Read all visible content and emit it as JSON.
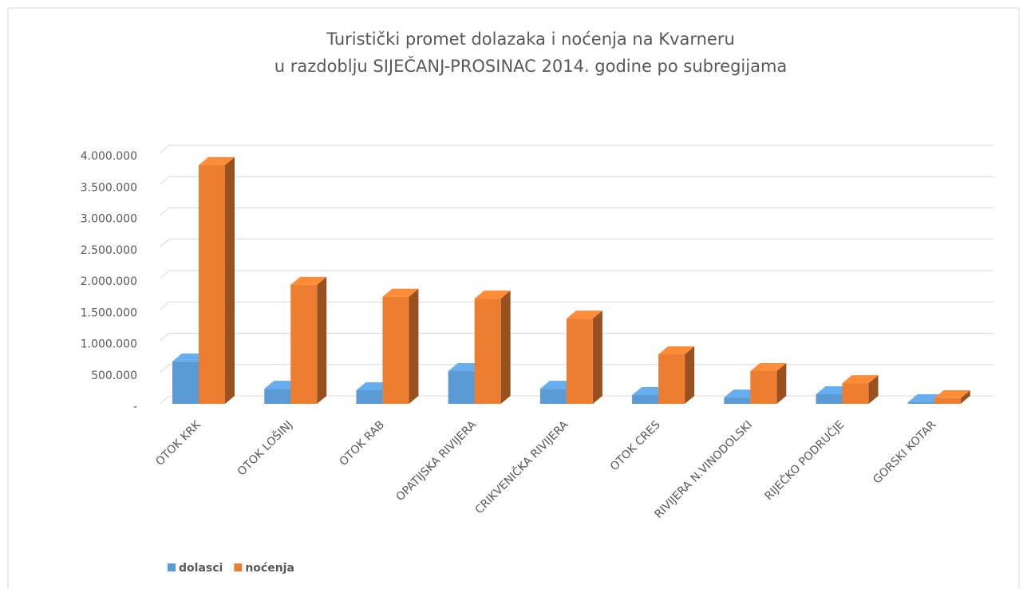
{
  "chart_data": {
    "type": "bar3d",
    "title": [
      "Turistički promet dolazaka i noćenja na Kvarneru",
      "u razdoblju SIJEČANJ-PROSINAC 2014. godine po subregijama"
    ],
    "categories": [
      "OTOK KRK",
      "OTOK LOŠINJ",
      "OTOK RAB",
      "OPATIJSKA RIVIJERA",
      "CRIKVENIČKA RIVIJERA",
      "OTOK CRES",
      "RIVIJERA N.VINODOLSKI",
      "RIJEČKO PODRUČJE",
      "GORSKI KOTAR"
    ],
    "series": [
      {
        "name": "dolasci",
        "color": "#5b9bd5",
        "values": [
          676000,
          240000,
          217000,
          523000,
          240000,
          140000,
          100000,
          153000,
          25000
        ]
      },
      {
        "name": "noćenja",
        "color": "#ed7d31",
        "values": [
          3810000,
          1900000,
          1710000,
          1680000,
          1360000,
          790000,
          523000,
          330000,
          90000
        ]
      }
    ],
    "ylim": [
      0,
      4000000
    ],
    "yticks": [
      {
        "value": 0,
        "label": "-"
      },
      {
        "value": 500000,
        "label": "500.000"
      },
      {
        "value": 1000000,
        "label": "1.000.000"
      },
      {
        "value": 1500000,
        "label": "1.500.000"
      },
      {
        "value": 2000000,
        "label": "2.000.000"
      },
      {
        "value": 2500000,
        "label": "2.500.000"
      },
      {
        "value": 3000000,
        "label": "3.000.000"
      },
      {
        "value": 3500000,
        "label": "3.500.000"
      },
      {
        "value": 4000000,
        "label": "4.000.000"
      }
    ],
    "grid": true,
    "legend": "bottom-left"
  }
}
